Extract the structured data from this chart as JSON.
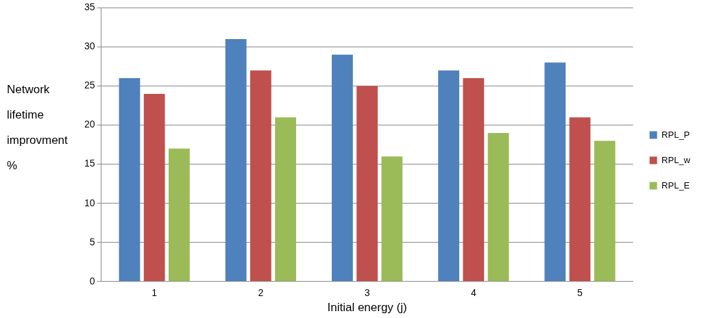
{
  "chart_data": {
    "type": "bar",
    "xlabel": "Initial energy (j)",
    "ylabel": "Network lifetime improvment %",
    "categories": [
      "1",
      "2",
      "3",
      "4",
      "5"
    ],
    "series": [
      {
        "name": "RPL_P",
        "color": "#4f81bd",
        "values": [
          26,
          31,
          29,
          27,
          28
        ]
      },
      {
        "name": "RPL_w",
        "color": "#c0504d",
        "values": [
          24,
          27,
          25,
          26,
          21
        ]
      },
      {
        "name": "RPL_E",
        "color": "#9bbb59",
        "values": [
          17,
          21,
          16,
          19,
          18
        ]
      }
    ],
    "ylim": [
      0,
      35
    ],
    "yticks": [
      0,
      5,
      10,
      15,
      20,
      25,
      30,
      35
    ],
    "grid": "y",
    "legend": "right"
  }
}
